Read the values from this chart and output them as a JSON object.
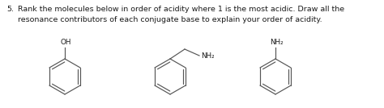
{
  "title_number": "5.",
  "text_line1": "Rank the molecules below in order of acidity where 1 is the most acidic. Draw all the",
  "text_line2": "resonance contributors of each conjugate base to explain your order of acidity.",
  "background_color": "#ffffff",
  "text_color": "#1a1a1a",
  "line_color": "#555555",
  "font_size": 6.8,
  "mol1_label": "OH",
  "mol2_label": "NH₂",
  "mol3_label": "NH₂"
}
